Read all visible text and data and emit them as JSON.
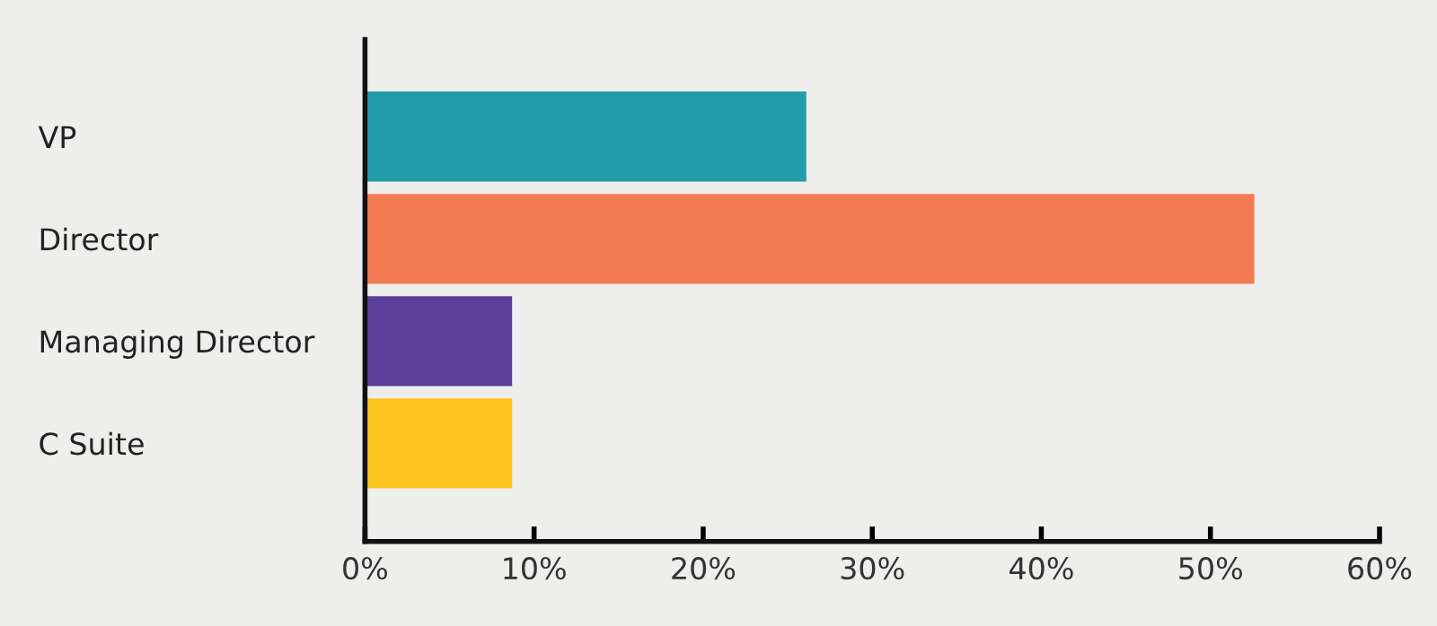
{
  "chart_data": {
    "type": "bar",
    "orientation": "horizontal",
    "categories": [
      "VP",
      "Director",
      "Managing Director",
      "C Suite"
    ],
    "values": [
      26.1,
      52.6,
      8.7,
      8.7
    ],
    "colors": [
      "#229ca9",
      "#f27b53",
      "#5b3f99",
      "#fdc41f"
    ],
    "xlim": [
      0,
      60
    ],
    "xticks": [
      {
        "value": 0,
        "label": "0%"
      },
      {
        "value": 10,
        "label": "10%"
      },
      {
        "value": 20,
        "label": "20%"
      },
      {
        "value": 30,
        "label": "30%"
      },
      {
        "value": 40,
        "label": "40%"
      },
      {
        "value": 50,
        "label": "50%"
      },
      {
        "value": 60,
        "label": "60%"
      }
    ],
    "grid": false,
    "legend": false
  }
}
